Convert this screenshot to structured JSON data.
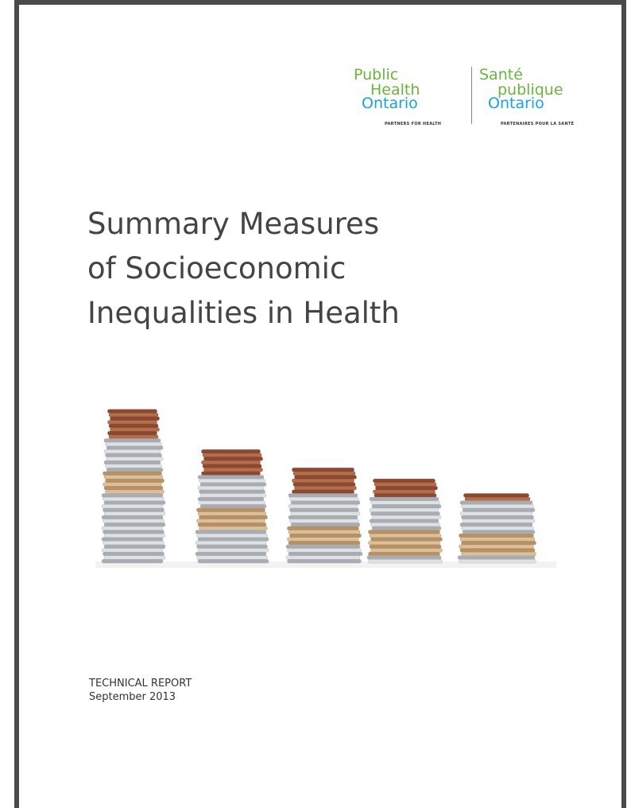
{
  "logo": {
    "en": {
      "line1": "Public",
      "line2": "Health",
      "line3": "Ontario",
      "tagline": "PARTNERS FOR HEALTH"
    },
    "fr": {
      "line1": "Santé",
      "line2": "publique",
      "line3": "Ontario",
      "tagline": "PARTENAIRES POUR LA SANTÉ"
    }
  },
  "title": {
    "lines": [
      "Summary Measures",
      "of Socioeconomic",
      "Inequalities in Health"
    ]
  },
  "footer": {
    "report_type": "TECHNICAL REPORT",
    "date": "September 2013"
  }
}
